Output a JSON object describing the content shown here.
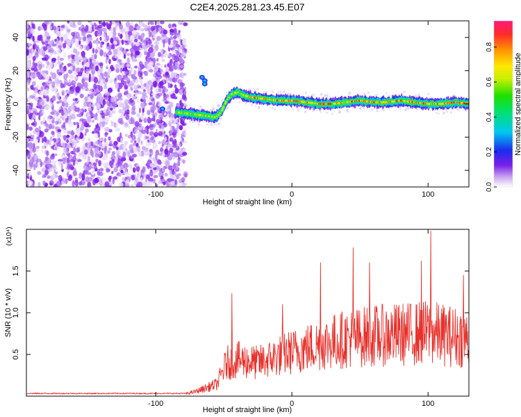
{
  "title": "C2E4.2025.281.23.45.E07",
  "chart_data": [
    {
      "type": "heatmap",
      "xlabel": "Height of straight line (km)",
      "ylabel": "Frequency (Hz)",
      "xlim": [
        -195,
        130
      ],
      "ylim": [
        -50,
        50
      ],
      "xticks": [
        -100,
        0,
        100
      ],
      "yticks": [
        -40,
        -20,
        0,
        20,
        40
      ],
      "noise_region_x": [
        -195,
        -78
      ],
      "ridge": [
        {
          "x": -85,
          "y": -5
        },
        {
          "x": -75,
          "y": -6
        },
        {
          "x": -65,
          "y": -7
        },
        {
          "x": -56,
          "y": -8
        },
        {
          "x": -52,
          "y": -5
        },
        {
          "x": -48,
          "y": 2
        },
        {
          "x": -44,
          "y": 6
        },
        {
          "x": -40,
          "y": 7
        },
        {
          "x": -35,
          "y": 5
        },
        {
          "x": -30,
          "y": 4
        },
        {
          "x": -20,
          "y": 3
        },
        {
          "x": -10,
          "y": 2
        },
        {
          "x": 0,
          "y": 2
        },
        {
          "x": 10,
          "y": 1
        },
        {
          "x": 20,
          "y": 0
        },
        {
          "x": 30,
          "y": 0
        },
        {
          "x": 40,
          "y": 1
        },
        {
          "x": 50,
          "y": 2
        },
        {
          "x": 60,
          "y": 1
        },
        {
          "x": 70,
          "y": 1
        },
        {
          "x": 80,
          "y": 2
        },
        {
          "x": 90,
          "y": 1
        },
        {
          "x": 100,
          "y": 0
        },
        {
          "x": 110,
          "y": 0
        },
        {
          "x": 120,
          "y": 1
        },
        {
          "x": 130,
          "y": 0
        }
      ],
      "colorbar": {
        "label": "Normalized spectral amplitude",
        "range": [
          0,
          0.95
        ],
        "ticks": [
          "0.0",
          "0.2",
          "0.4",
          "0.6",
          "0.8"
        ]
      }
    },
    {
      "type": "line",
      "xlabel": "Height of straight line (km)",
      "ylabel": "SNR (10 * v/v)",
      "multiplier": "(x10⁴)",
      "xlim": [
        -195,
        130
      ],
      "ylim": [
        0,
        2.0
      ],
      "xticks": [
        -100,
        0,
        100
      ],
      "yticks": [
        0.5,
        1.0,
        1.5
      ],
      "ytick_labels": [
        "0.5",
        "1.0",
        "1.5"
      ],
      "series": [
        {
          "name": "SNR",
          "color": "#e8302a",
          "envelope": [
            {
              "x": -195,
              "y": 0.03
            },
            {
              "x": -80,
              "y": 0.03
            },
            {
              "x": -70,
              "y": 0.08
            },
            {
              "x": -55,
              "y": 0.2
            },
            {
              "x": -48,
              "y": 0.55
            },
            {
              "x": -40,
              "y": 0.6
            },
            {
              "x": -25,
              "y": 0.55
            },
            {
              "x": -5,
              "y": 0.7
            },
            {
              "x": 20,
              "y": 0.85
            },
            {
              "x": 40,
              "y": 0.95
            },
            {
              "x": 60,
              "y": 1.0
            },
            {
              "x": 80,
              "y": 1.02
            },
            {
              "x": 100,
              "y": 1.05
            },
            {
              "x": 115,
              "y": 1.0
            },
            {
              "x": 130,
              "y": 0.95
            }
          ],
          "peaks": [
            {
              "x": -44,
              "y": 1.23
            },
            {
              "x": -7,
              "y": 1.1
            },
            {
              "x": 21,
              "y": 1.6
            },
            {
              "x": 45,
              "y": 1.78
            },
            {
              "x": 57,
              "y": 1.6
            },
            {
              "x": 95,
              "y": 1.62
            },
            {
              "x": 102,
              "y": 1.98
            },
            {
              "x": 126,
              "y": 1.45
            }
          ]
        }
      ]
    }
  ]
}
